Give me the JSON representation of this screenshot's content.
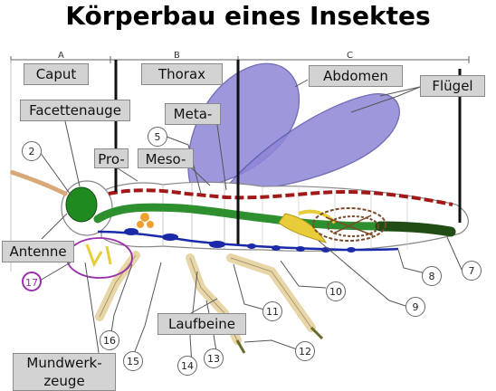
{
  "title": "Körperbau eines Insektes",
  "segments": [
    "A",
    "B",
    "C"
  ],
  "labels": {
    "caput": "Caput",
    "thorax": "Thorax",
    "abdomen": "Abdomen",
    "fluegel": "Flügel",
    "facettenauge": "Facettenauge",
    "meta": "Meta-",
    "pro": "Pro-",
    "meso": "Meso-",
    "antenne": "Antenne",
    "laufbeine": "Laufbeine",
    "mundwerkzeuge_1": "Mundwerk-",
    "mundwerkzeuge_2": "zeuge"
  },
  "numbers": [
    "2",
    "5",
    "7",
    "8",
    "9",
    "10",
    "11",
    "12",
    "13",
    "14",
    "15",
    "16",
    "17"
  ],
  "colors": {
    "wing": "#8c86d6",
    "wing_edge": "#5a54a8",
    "dorsal_vessel": "#a01818",
    "nerve_cord": "#1a2aa8",
    "gut_green": "#2e8f2e",
    "gut_dark": "#1f4d14",
    "gland_orange": "#f0a030",
    "reproductive_yellow": "#e8cc3a",
    "malpighian_brown": "#7a4a2a",
    "leg": "#e8d6a8",
    "eye": "#1f8a1f",
    "highlight_purple": "#9b2fae"
  }
}
